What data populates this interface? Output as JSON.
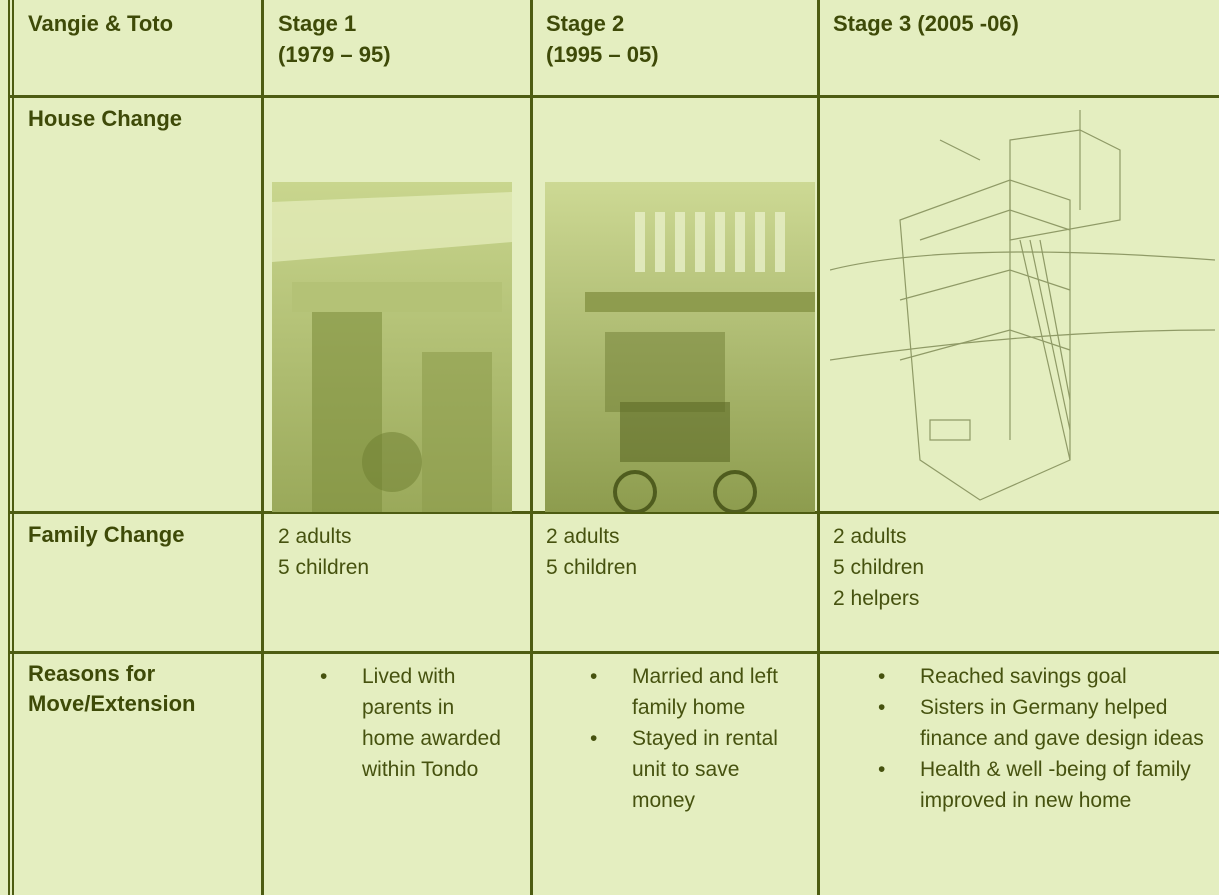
{
  "table": {
    "header": [
      [
        "Vangie & Toto"
      ],
      [
        "Stage 1",
        "(1979 – 95)"
      ],
      [
        "Stage 2",
        "(1995 – 05)"
      ],
      [
        "Stage 3 (2005 -06)"
      ]
    ],
    "rows": [
      {
        "label": [
          "House Change"
        ]
      },
      {
        "label": [
          "Family Change"
        ],
        "cells": [
          [
            "2 adults",
            "5 children"
          ],
          [
            "2 adults",
            "5 children"
          ],
          [
            "2 adults",
            "5 children",
            "2 helpers"
          ]
        ]
      },
      {
        "label": [
          "Reasons for",
          "Move/Extension"
        ],
        "cells": [
          [
            "Lived with parents in home awarded within Tondo"
          ],
          [
            "Married and left family home",
            "Stayed in rental unit to save money"
          ],
          [
            "Reached savings goal",
            "Sisters in Germany helped finance and gave design ideas",
            "Health & well -being of family improved in new home"
          ]
        ]
      }
    ]
  }
}
